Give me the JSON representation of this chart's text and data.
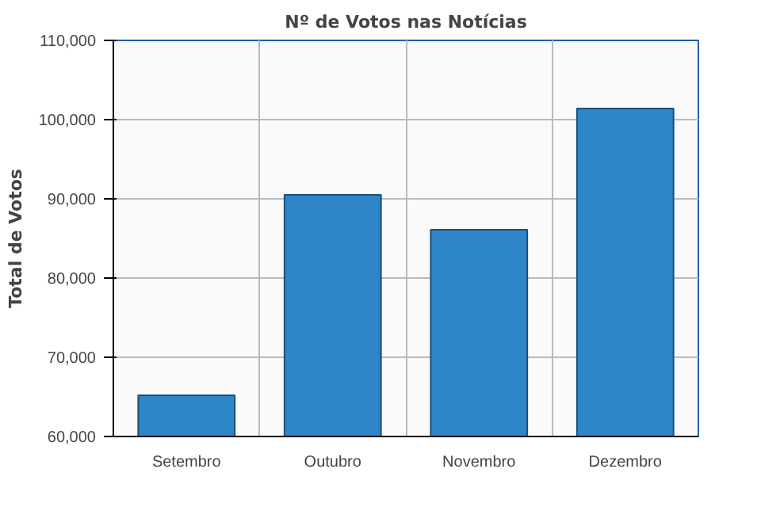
{
  "chart_data": {
    "type": "bar",
    "title": "Nº de Votos nas Notícias",
    "ylabel": "Total de Votos",
    "categories": [
      "Setembro",
      "Outubro",
      "Novembro",
      "Dezembro"
    ],
    "values": [
      65200,
      90500,
      86100,
      101400
    ],
    "color": "#2e86c8",
    "ylim": [
      60000,
      110000
    ],
    "yticks": [
      {
        "value": 60000,
        "label": "60,000"
      },
      {
        "value": 70000,
        "label": "70,000"
      },
      {
        "value": 80000,
        "label": "80,000"
      },
      {
        "value": 90000,
        "label": "90,000"
      },
      {
        "value": 100000,
        "label": "100,000"
      },
      {
        "value": 110000,
        "label": "110,000"
      }
    ],
    "grid": true
  }
}
